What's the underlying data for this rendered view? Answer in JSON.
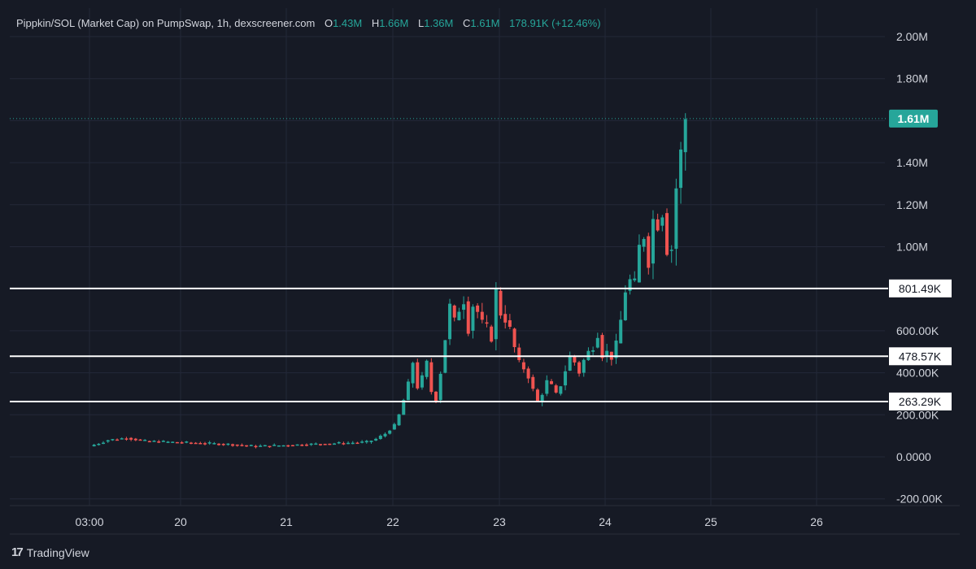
{
  "header": {
    "title": "Pippkin/SOL (Market Cap) on PumpSwap, 1h, dexscreener.com",
    "o_label": "O",
    "o_value": "1.43M",
    "h_label": "H",
    "h_value": "1.66M",
    "l_label": "L",
    "l_value": "1.36M",
    "c_label": "C",
    "c_value": "1.61M",
    "change": "178.91K (+12.46%)"
  },
  "branding": {
    "logo_text": "TradingView",
    "logo_icon": "tradingview-logo-icon"
  },
  "colors": {
    "up": "#26a69a",
    "down": "#ef5350",
    "background": "#161a25",
    "grid": "#232838",
    "level_line": "#ffffff",
    "price_tag": "#26a69a"
  },
  "chart_data": {
    "type": "candlestick",
    "y_axis_labels": [
      "2.00M",
      "1.80M",
      "1.40M",
      "1.20M",
      "1.00M",
      "600.00K",
      "400.00K",
      "200.00K",
      "0.0000",
      "-200.00K"
    ],
    "y_axis_values": [
      2000000,
      1800000,
      1400000,
      1200000,
      1000000,
      600000,
      400000,
      200000,
      0,
      -200000
    ],
    "x_axis_labels": [
      "03:00",
      "20",
      "21",
      "22",
      "23",
      "24",
      "25",
      "26"
    ],
    "ylim": [
      -200000,
      2000000
    ],
    "grid": true,
    "current_price": {
      "label": "1.61M",
      "value": 1610000
    },
    "horizontal_levels": [
      {
        "label": "801.49K",
        "value": 801490
      },
      {
        "label": "478.57K",
        "value": 478570
      },
      {
        "label": "263.29K",
        "value": 263290
      }
    ],
    "price_path": [
      [
        0,
        50000
      ],
      [
        4,
        80000
      ],
      [
        8,
        90000
      ],
      [
        12,
        75000
      ],
      [
        18,
        70000
      ],
      [
        24,
        65000
      ],
      [
        30,
        60000
      ],
      [
        36,
        50000
      ],
      [
        42,
        55000
      ],
      [
        48,
        60000
      ],
      [
        54,
        65000
      ],
      [
        60,
        70000
      ],
      [
        62,
        85000
      ],
      [
        64,
        110000
      ],
      [
        66,
        150000
      ],
      [
        67,
        200000
      ],
      [
        68,
        270000
      ],
      [
        69,
        350000
      ],
      [
        70,
        450000
      ],
      [
        71,
        330000
      ],
      [
        72,
        380000
      ],
      [
        73,
        450000
      ],
      [
        74,
        310000
      ],
      [
        75,
        270000
      ],
      [
        76,
        400000
      ],
      [
        77,
        560000
      ],
      [
        78,
        720000
      ],
      [
        79,
        650000
      ],
      [
        80,
        700000
      ],
      [
        81,
        740000
      ],
      [
        82,
        600000
      ],
      [
        83,
        720000
      ],
      [
        84,
        690000
      ],
      [
        85,
        640000
      ],
      [
        86,
        620000
      ],
      [
        87,
        560000
      ],
      [
        88,
        790000
      ],
      [
        89,
        680000
      ],
      [
        90,
        650000
      ],
      [
        91,
        610000
      ],
      [
        92,
        520000
      ],
      [
        93,
        450000
      ],
      [
        94,
        420000
      ],
      [
        95,
        380000
      ],
      [
        96,
        320000
      ],
      [
        97,
        260000
      ],
      [
        98,
        300000
      ],
      [
        99,
        360000
      ],
      [
        100,
        340000
      ],
      [
        101,
        300000
      ],
      [
        102,
        340000
      ],
      [
        103,
        410000
      ],
      [
        104,
        480000
      ],
      [
        105,
        450000
      ],
      [
        106,
        400000
      ],
      [
        107,
        460000
      ],
      [
        108,
        500000
      ],
      [
        109,
        520000
      ],
      [
        110,
        580000
      ],
      [
        111,
        480000
      ],
      [
        112,
        500000
      ],
      [
        113,
        470000
      ],
      [
        114,
        540000
      ],
      [
        115,
        650000
      ],
      [
        116,
        790000
      ],
      [
        117,
        840000
      ],
      [
        118,
        830000
      ],
      [
        119,
        1000000
      ],
      [
        120,
        1050000
      ],
      [
        121,
        920000
      ],
      [
        122,
        1130000
      ],
      [
        123,
        1100000
      ],
      [
        124,
        1160000
      ],
      [
        125,
        980000
      ],
      [
        126,
        990000
      ],
      [
        127,
        1280000
      ],
      [
        128,
        1450000
      ],
      [
        129,
        1610000
      ]
    ]
  }
}
